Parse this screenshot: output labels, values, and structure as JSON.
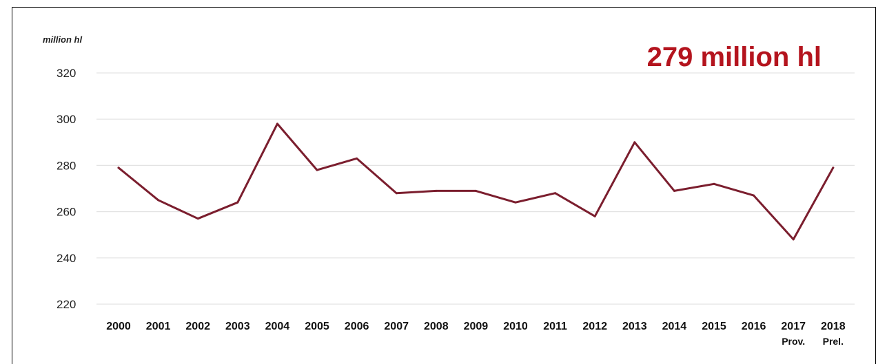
{
  "chart_data": {
    "type": "line",
    "unit_label": "million hl",
    "headline": "279 million hl",
    "x": [
      "2000",
      "2001",
      "2002",
      "2003",
      "2004",
      "2005",
      "2006",
      "2007",
      "2008",
      "2009",
      "2010",
      "2011",
      "2012",
      "2013",
      "2014",
      "2015",
      "2016",
      "2017",
      "2018"
    ],
    "x_sublabels": {
      "2017": "Prov.",
      "2018": "Prel."
    },
    "values": [
      279,
      265,
      257,
      264,
      298,
      278,
      283,
      268,
      269,
      269,
      264,
      268,
      258,
      290,
      269,
      272,
      267,
      248,
      279
    ],
    "y_ticks": [
      220,
      240,
      260,
      280,
      300,
      320
    ],
    "ylim": [
      220,
      320
    ],
    "grid": true,
    "colors": {
      "line": "#7b1e2e",
      "headline": "#b4141e",
      "grid": "#e3e3e3"
    }
  }
}
